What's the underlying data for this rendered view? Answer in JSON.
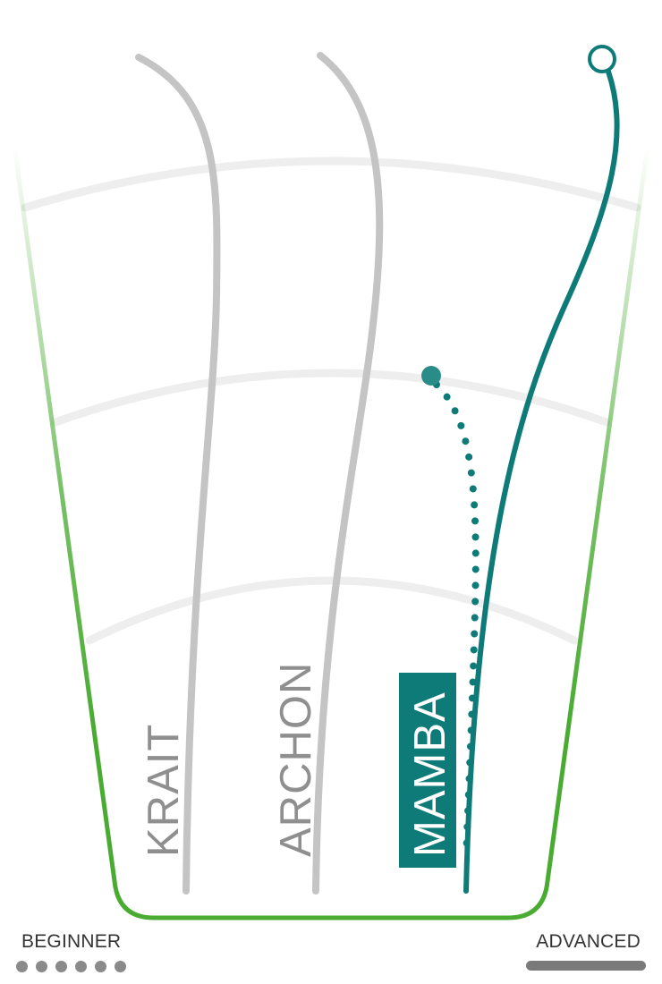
{
  "colors": {
    "container_green": "#4aab33",
    "grid": "#eeeeee",
    "inactive_curve": "#c4c4c4",
    "active": "#0e7b78",
    "label_gray": "#8f8f8f",
    "label_active_text": "#ffffff"
  },
  "products": [
    {
      "name": "KRAIT",
      "active": false
    },
    {
      "name": "ARCHON",
      "active": false
    },
    {
      "name": "MAMBA",
      "active": true
    }
  ],
  "scale": {
    "beginner_label": "BEGINNER",
    "advanced_label": "ADVANCED"
  }
}
